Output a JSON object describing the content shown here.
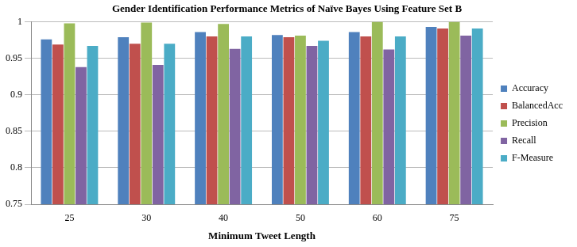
{
  "chart_data": {
    "type": "bar",
    "title": "Gender Identification Performance Metrics of Naïve Bayes Using Feature Set B",
    "x_label": "Minimum Tweet Length",
    "categories": [
      "25",
      "30",
      "40",
      "50",
      "60",
      "75"
    ],
    "series": [
      {
        "name": "Accuracy",
        "color": "#4f81bd",
        "values": [
          0.976,
          0.979,
          0.986,
          0.982,
          0.986,
          0.993
        ]
      },
      {
        "name": "BalancedAcc",
        "color": "#c0504d",
        "values": [
          0.969,
          0.97,
          0.98,
          0.979,
          0.98,
          0.991
        ]
      },
      {
        "name": "Precision",
        "color": "#9bbb59",
        "values": [
          0.998,
          0.999,
          0.997,
          0.981,
          1.0,
          1.0
        ]
      },
      {
        "name": "Recall",
        "color": "#8064a2",
        "values": [
          0.938,
          0.941,
          0.963,
          0.967,
          0.962,
          0.981
        ]
      },
      {
        "name": "F-Measure",
        "color": "#4bacc6",
        "values": [
          0.967,
          0.97,
          0.98,
          0.974,
          0.98,
          0.991
        ]
      }
    ],
    "ylim": [
      0.75,
      1
    ],
    "yticks": [
      0.75,
      0.8,
      0.85,
      0.9,
      0.95,
      1
    ],
    "grid": true,
    "legend": "right"
  }
}
